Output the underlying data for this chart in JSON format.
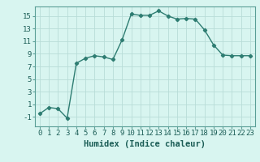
{
  "x": [
    0,
    1,
    2,
    3,
    4,
    5,
    6,
    7,
    8,
    9,
    10,
    11,
    12,
    13,
    14,
    15,
    16,
    17,
    18,
    19,
    20,
    21,
    22,
    23
  ],
  "y": [
    -0.5,
    0.5,
    0.3,
    -1.2,
    7.5,
    8.3,
    8.7,
    8.5,
    8.1,
    11.2,
    15.3,
    15.1,
    15.1,
    15.8,
    15.0,
    14.5,
    14.6,
    14.5,
    12.8,
    10.4,
    8.8,
    8.7,
    8.7,
    8.7
  ],
  "line_color": "#2e7d72",
  "marker": "D",
  "marker_size": 2.2,
  "bg_color": "#d8f5f0",
  "grid_color": "#b8ddd8",
  "xlabel": "Humidex (Indice chaleur)",
  "xlim": [
    -0.5,
    23.5
  ],
  "ylim": [
    -2.5,
    16.5
  ],
  "xticks": [
    0,
    1,
    2,
    3,
    4,
    5,
    6,
    7,
    8,
    9,
    10,
    11,
    12,
    13,
    14,
    15,
    16,
    17,
    18,
    19,
    20,
    21,
    22,
    23
  ],
  "yticks": [
    -1,
    1,
    3,
    5,
    7,
    9,
    11,
    13,
    15
  ],
  "tick_fontsize": 6.5,
  "xlabel_fontsize": 7.5,
  "line_width": 1.0,
  "spine_color": "#5a9e96",
  "tick_color": "#5a9e96",
  "label_color": "#1a5c55"
}
